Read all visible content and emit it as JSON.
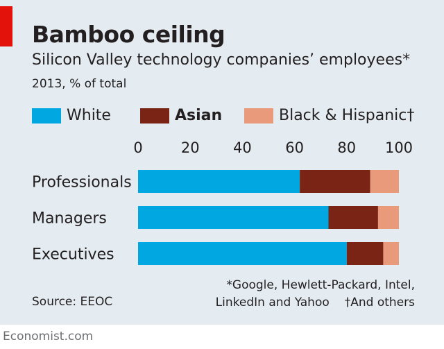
{
  "header": {
    "title": "Bamboo ceiling",
    "subtitle": "Silicon Valley technology companies’ employees*",
    "unit": "2013, % of total"
  },
  "colors": {
    "panel": "#e4ecf1",
    "accent_red": "#e3120b",
    "white_series": "#00a7e1",
    "asian_series": "#7a2415",
    "black_hispanic_series": "#e99a7b"
  },
  "footer": {
    "source": "Source: EEOC",
    "note_1": "*Google, Hewlett-Packard, Intel,",
    "note_2a": "LinkedIn and Yahoo",
    "note_2b": "†And others",
    "brand": "Economist.com"
  },
  "chart_data": {
    "type": "bar",
    "orientation": "horizontal",
    "stacked": true,
    "title": "Bamboo ceiling",
    "subtitle": "Silicon Valley technology companies’ employees*",
    "unit": "2013, % of total",
    "categories": [
      "Professionals",
      "Managers",
      "Executives"
    ],
    "series": [
      {
        "name": "White",
        "bold": false,
        "color": "#00a7e1",
        "values": [
          62,
          73,
          80
        ]
      },
      {
        "name": "Asian",
        "bold": true,
        "color": "#7a2415",
        "values": [
          27,
          19,
          14
        ]
      },
      {
        "name": "Black & Hispanic†",
        "bold": false,
        "color": "#e99a7b",
        "values": [
          11,
          8,
          6
        ]
      }
    ],
    "xlim": [
      0,
      100
    ],
    "xticks": [
      0,
      20,
      40,
      60,
      80,
      100
    ],
    "tick_labels": [
      "0",
      "20",
      "40",
      "60",
      "80",
      "100"
    ],
    "axis_position": "top",
    "grid": false,
    "legend_position": "top-left"
  }
}
